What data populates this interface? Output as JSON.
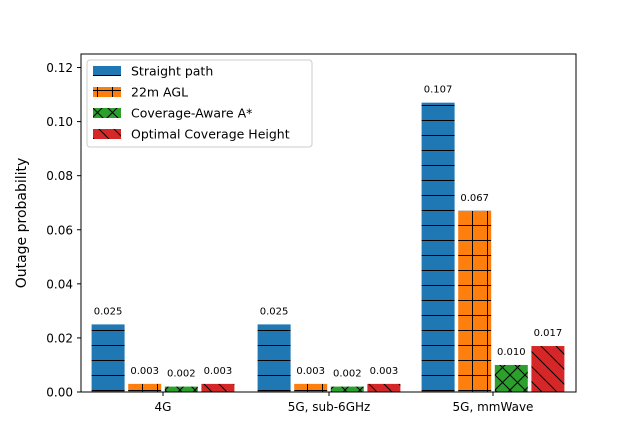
{
  "chart_data": {
    "type": "bar",
    "title": "",
    "xlabel": "",
    "ylabel": "Outage probability",
    "ylim": [
      0,
      0.125
    ],
    "yticks": [
      0.0,
      0.02,
      0.04,
      0.06,
      0.08,
      0.1,
      0.12
    ],
    "ytick_labels": [
      "0.00",
      "0.02",
      "0.04",
      "0.06",
      "0.08",
      "0.10",
      "0.12"
    ],
    "categories": [
      "4G",
      "5G, sub-6GHz",
      "5G, mmWave"
    ],
    "legend_position": "top-left",
    "grid": false,
    "series": [
      {
        "name": "Straight path",
        "color": "#1f77b4",
        "hatch": "horizontal",
        "values": [
          0.025,
          0.025,
          0.107
        ],
        "labels": [
          "0.025",
          "0.025",
          "0.107"
        ]
      },
      {
        "name": "22m AGL",
        "color": "#ff7f0e",
        "hatch": "cross",
        "values": [
          0.003,
          0.003,
          0.067
        ],
        "labels": [
          "0.003",
          "0.003",
          "0.067"
        ]
      },
      {
        "name": "Coverage-Aware A*",
        "color": "#2ca02c",
        "hatch": "x",
        "values": [
          0.002,
          0.002,
          0.01
        ],
        "labels": [
          "0.002",
          "0.002",
          "0.010"
        ]
      },
      {
        "name": "Optimal Coverage Height",
        "color": "#d62728",
        "hatch": "backslash",
        "values": [
          0.003,
          0.003,
          0.017
        ],
        "labels": [
          "0.003",
          "0.003",
          "0.017"
        ]
      }
    ]
  }
}
